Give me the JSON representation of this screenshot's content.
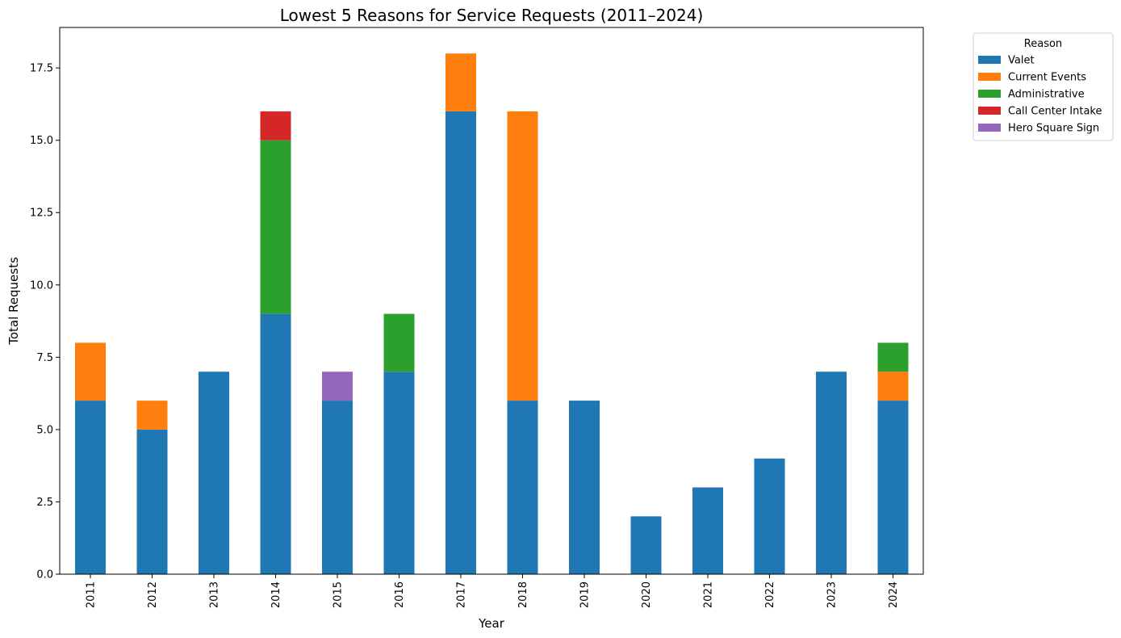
{
  "chart_data": {
    "type": "bar",
    "stacked": true,
    "title": "Lowest 5 Reasons for Service Requests (2011–2024)",
    "xlabel": "Year",
    "ylabel": "Total Requests",
    "ylim": [
      0,
      18.9
    ],
    "yticks": [
      0.0,
      2.5,
      5.0,
      7.5,
      10.0,
      12.5,
      15.0,
      17.5
    ],
    "ytick_labels": [
      "0.0",
      "2.5",
      "5.0",
      "7.5",
      "10.0",
      "12.5",
      "15.0",
      "17.5"
    ],
    "categories": [
      "2011",
      "2012",
      "2013",
      "2014",
      "2015",
      "2016",
      "2017",
      "2018",
      "2019",
      "2020",
      "2021",
      "2022",
      "2023",
      "2024"
    ],
    "legend": {
      "title": "Reason",
      "placement": "outside-top-right"
    },
    "grid": false,
    "series": [
      {
        "name": "Valet",
        "color": "#1f77b4",
        "values": [
          6,
          5,
          7,
          9,
          6,
          7,
          16,
          6,
          6,
          2,
          3,
          4,
          7,
          6
        ]
      },
      {
        "name": "Current Events",
        "color": "#ff7f0e",
        "values": [
          2,
          1,
          0,
          0,
          0,
          0,
          2,
          10,
          0,
          0,
          0,
          0,
          0,
          1
        ]
      },
      {
        "name": "Administrative",
        "color": "#2ca02c",
        "values": [
          0,
          0,
          0,
          6,
          0,
          2,
          0,
          0,
          0,
          0,
          0,
          0,
          0,
          1
        ]
      },
      {
        "name": "Call Center Intake",
        "color": "#d62728",
        "values": [
          0,
          0,
          0,
          1,
          0,
          0,
          0,
          0,
          0,
          0,
          0,
          0,
          0,
          0
        ]
      },
      {
        "name": "Hero Square Sign",
        "color": "#9467bd",
        "values": [
          0,
          0,
          0,
          0,
          1,
          0,
          0,
          0,
          0,
          0,
          0,
          0,
          0,
          0
        ]
      }
    ]
  }
}
